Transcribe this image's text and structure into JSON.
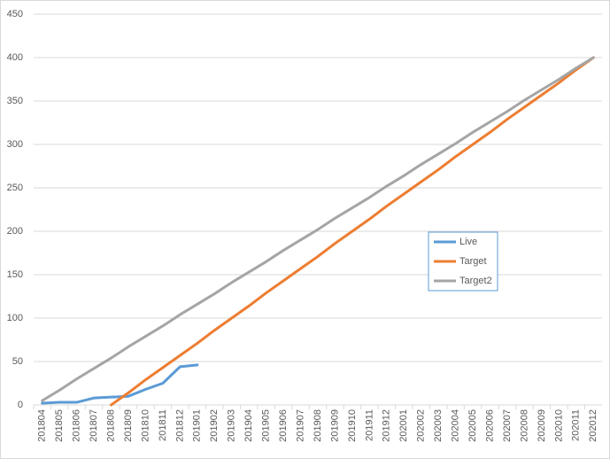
{
  "chart_data": {
    "type": "line",
    "categories": [
      "201804",
      "201805",
      "201806",
      "201807",
      "201808",
      "201809",
      "201810",
      "201811",
      "201812",
      "201901",
      "201902",
      "201903",
      "201904",
      "201905",
      "201906",
      "201907",
      "201908",
      "201909",
      "201910",
      "201911",
      "201912",
      "202001",
      "202002",
      "202003",
      "202004",
      "202005",
      "202006",
      "202007",
      "202008",
      "202009",
      "202010",
      "202011",
      "202012"
    ],
    "series": [
      {
        "name": "Live",
        "color": "#5b9bd5",
        "values": [
          2,
          3,
          3,
          8,
          9,
          10,
          18,
          25,
          44,
          46,
          null,
          null,
          null,
          null,
          null,
          null,
          null,
          null,
          null,
          null,
          null,
          null,
          null,
          null,
          null,
          null,
          null,
          null,
          null,
          null,
          null,
          null,
          null
        ]
      },
      {
        "name": "Target",
        "color": "#ed7d31",
        "values": [
          null,
          null,
          null,
          null,
          0,
          14,
          29,
          43,
          57,
          71,
          86,
          100,
          114,
          129,
          143,
          157,
          171,
          186,
          200,
          214,
          229,
          243,
          257,
          271,
          286,
          300,
          314,
          329,
          343,
          357,
          371,
          386,
          400
        ]
      },
      {
        "name": "Target2",
        "color": "#a5a5a5",
        "values": [
          5,
          17,
          30,
          42,
          54,
          67,
          79,
          91,
          104,
          116,
          128,
          141,
          153,
          165,
          178,
          190,
          202,
          215,
          227,
          239,
          252,
          264,
          277,
          289,
          301,
          314,
          326,
          338,
          351,
          363,
          375,
          388,
          400
        ]
      }
    ],
    "ylim": [
      0,
      450
    ],
    "yticks": [
      0,
      50,
      100,
      150,
      200,
      250,
      300,
      350,
      400,
      450
    ],
    "grid": true,
    "legend": "right"
  }
}
